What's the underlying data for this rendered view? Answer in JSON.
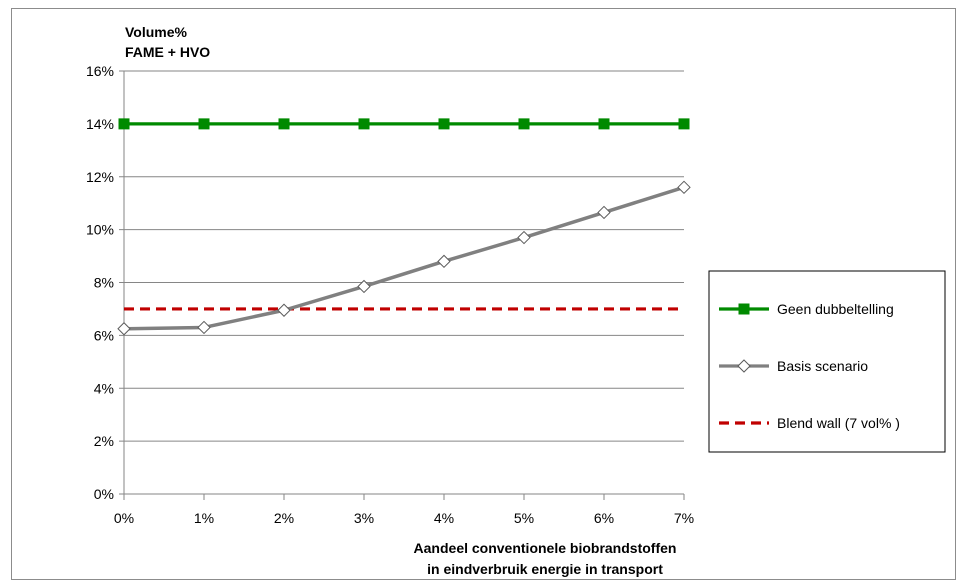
{
  "chart_data": {
    "type": "line",
    "ylabel_lines": [
      "Volume%",
      "FAME + HVO"
    ],
    "xlabel_lines": [
      "Aandeel conventionele biobrandstoffen",
      "in eindverbruik energie in transport"
    ],
    "categories": [
      "0%",
      "1%",
      "2%",
      "3%",
      "4%",
      "5%",
      "6%",
      "7%"
    ],
    "y_ticks": [
      "0%",
      "2%",
      "4%",
      "6%",
      "8%",
      "10%",
      "12%",
      "14%",
      "16%"
    ],
    "ylim": [
      0,
      16
    ],
    "grid": "horizontal",
    "legend_position": "right",
    "series": [
      {
        "name": "Geen dubbeltelling",
        "color": "#008a00",
        "style": "solid",
        "marker": "square",
        "values": [
          14,
          14,
          14,
          14,
          14,
          14,
          14,
          14
        ]
      },
      {
        "name": "Basis scenario",
        "color": "#808080",
        "style": "solid",
        "marker": "diamond",
        "values": [
          6.25,
          6.3,
          6.95,
          7.85,
          8.8,
          9.7,
          10.65,
          11.6
        ]
      },
      {
        "name": "Blend wall (7 vol% )",
        "color": "#c00000",
        "style": "dashed",
        "marker": "none",
        "values": [
          7,
          7,
          7,
          7,
          7,
          7,
          7,
          7
        ]
      }
    ]
  }
}
